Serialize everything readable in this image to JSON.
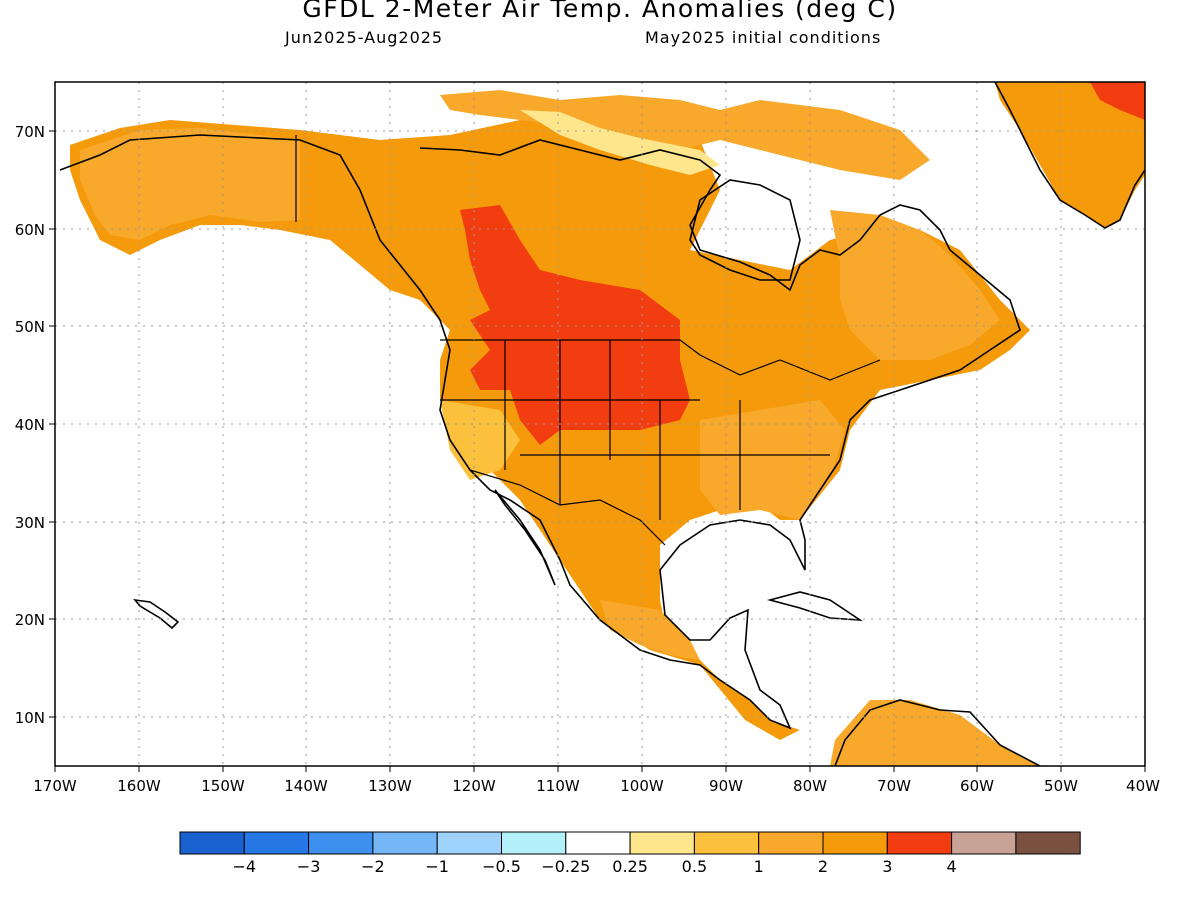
{
  "header": {
    "title": "GFDL 2-Meter Air Temp. Anomalies (deg C)",
    "period": "Jun2025-Aug2025",
    "initial_conditions": "May2025 initial conditions"
  },
  "axes": {
    "lon_labels": [
      "170W",
      "160W",
      "150W",
      "140W",
      "130W",
      "120W",
      "110W",
      "100W",
      "90W",
      "80W",
      "70W",
      "60W",
      "50W",
      "40W"
    ],
    "lat_labels": [
      "70N",
      "60N",
      "50N",
      "40N",
      "30N",
      "20N",
      "10N"
    ]
  },
  "legend": {
    "colors": [
      "#1a62cf",
      "#2677e6",
      "#3d90f0",
      "#75b7f6",
      "#9fd2fa",
      "#b4f0fa",
      "#ffffff",
      "#fde68c",
      "#fbc13c",
      "#f8a92c",
      "#f49a0b",
      "#f23d10",
      "#c9a297",
      "#7a5040"
    ],
    "labels": [
      "−4",
      "−3",
      "−2",
      "−1",
      "−0.5",
      "−0.25",
      "0.25",
      "0.5",
      "1",
      "2",
      "3",
      "4"
    ]
  }
}
